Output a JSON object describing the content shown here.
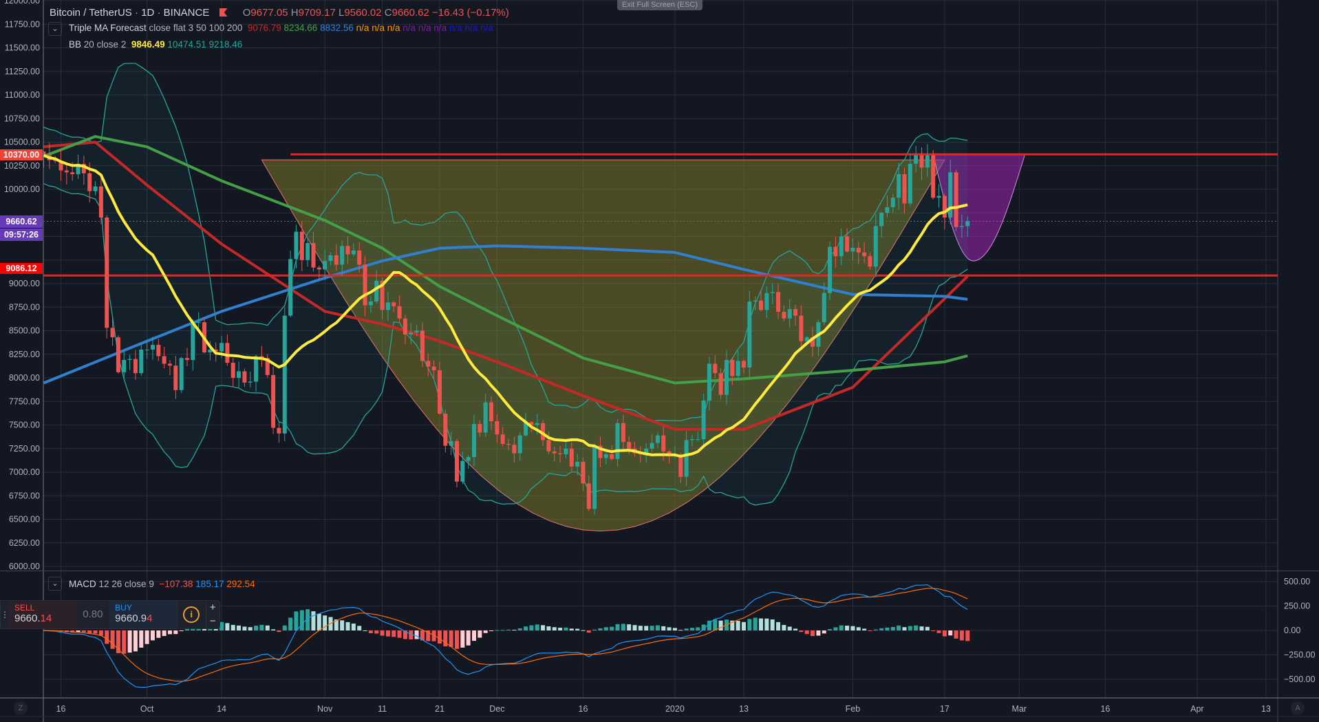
{
  "header": {
    "symbol": "Bitcoin / TetherUS",
    "sep": " · ",
    "interval": "1D",
    "exchange": "BINANCE",
    "o_label": "O",
    "o": "9677.05",
    "h_label": "H",
    "h": "9709.17",
    "l_label": "L",
    "l": "9560.02",
    "c_label": "C",
    "c": "9660.62",
    "change": "−16.43 (−0.17%)"
  },
  "indicators": {
    "triple_ma": {
      "name": "Triple MA Forecast",
      "params": "close flat 3 50 100 200",
      "v1": "9076.79",
      "v2": "8234.66",
      "v3": "8832.56",
      "na": [
        "n/a",
        "n/a",
        "n/a",
        "n/a",
        "n/a",
        "n/a",
        "n/a",
        "n/a",
        "n/a"
      ]
    },
    "bb": {
      "name": "BB",
      "params": "20 close 2",
      "basis": "9846.49",
      "upper": "10474.51",
      "lower": "9218.46"
    },
    "macd": {
      "name": "MACD",
      "params": "12 26 close 9",
      "hist": "−107.38",
      "macd": "185.17",
      "signal": "292.54"
    }
  },
  "exit_fullscreen": "Exit Full Screen (ESC)",
  "price_labels": {
    "resistance": "10370.00",
    "last": "9660.62",
    "countdown": "09:57:26",
    "support": "9086.12"
  },
  "trade": {
    "sell_label": "SELL",
    "sell_main": "9660.",
    "sell_tail": "14",
    "spread": "0.80",
    "buy_label": "BUY",
    "buy_main": "9660.9",
    "buy_tail": "4",
    "info": "i",
    "plus": "+",
    "minus": "−"
  },
  "axis_buttons": {
    "left": "Z",
    "right": "A"
  },
  "colors": {
    "bg": "#131722",
    "up": "#26a69a",
    "down": "#ef5350",
    "yellow": "#ffeb3b",
    "ma50": "#c62828",
    "ma100": "#2f80d0",
    "ma200": "#43a047",
    "bb": "#26a69a",
    "level": "#ff1a1a",
    "cup": "#8f8a2a",
    "handle": "#9c27b0",
    "macd": "#2196f3",
    "signal": "#ff6d00"
  },
  "chart_data": {
    "type": "candlestick",
    "start_date": "2019-09-13",
    "price_axis": {
      "min": 6000,
      "max": 12000,
      "step": 250
    },
    "macd_axis": {
      "ticks": [
        500,
        250,
        0,
        -250,
        -500
      ]
    },
    "time_ticks": [
      {
        "day": 3,
        "label": "16"
      },
      {
        "day": 18,
        "label": "Oct"
      },
      {
        "day": 31,
        "label": "14"
      },
      {
        "day": 49,
        "label": "Nov"
      },
      {
        "day": 59,
        "label": "11"
      },
      {
        "day": 69,
        "label": "21"
      },
      {
        "day": 79,
        "label": "Dec"
      },
      {
        "day": 94,
        "label": "16"
      },
      {
        "day": 110,
        "label": "2020"
      },
      {
        "day": 122,
        "label": "13"
      },
      {
        "day": 141,
        "label": "Feb"
      },
      {
        "day": 157,
        "label": "17"
      },
      {
        "day": 170,
        "label": "Mar"
      },
      {
        "day": 185,
        "label": "16"
      },
      {
        "day": 201,
        "label": "Apr"
      },
      {
        "day": 213,
        "label": "13"
      }
    ],
    "closes": [
      10360,
      10310,
      10300,
      10200,
      10180,
      10160,
      10270,
      10170,
      9980,
      10030,
      9700,
      8530,
      8430,
      8060,
      8190,
      8200,
      8050,
      8300,
      8300,
      8350,
      8230,
      8150,
      8130,
      7870,
      8210,
      8190,
      8590,
      8590,
      8270,
      8300,
      8280,
      8370,
      8160,
      8000,
      8070,
      7950,
      7960,
      8230,
      8210,
      8030,
      7470,
      7410,
      8660,
      9260,
      9550,
      9250,
      9430,
      9170,
      9150,
      9240,
      9300,
      9200,
      9400,
      9310,
      9350,
      9200,
      8770,
      8810,
      9030,
      8720,
      8800,
      8760,
      8630,
      8460,
      8480,
      8500,
      8180,
      8120,
      8080,
      7620,
      7280,
      7330,
      6900,
      7120,
      7160,
      7510,
      7420,
      7740,
      7540,
      7400,
      7300,
      7290,
      7200,
      7390,
      7530,
      7500,
      7520,
      7340,
      7220,
      7200,
      7190,
      7250,
      7060,
      7110,
      6880,
      6610,
      7280,
      7150,
      7190,
      7140,
      7520,
      7320,
      7250,
      7200,
      7190,
      7250,
      7310,
      7390,
      7220,
      7170,
      7180,
      6950,
      7340,
      7350,
      7350,
      7760,
      8150,
      8050,
      7820,
      8190,
      8020,
      8180,
      8110,
      8810,
      8820,
      8720,
      8900,
      8910,
      8700,
      8630,
      8730,
      8660,
      8390,
      8430,
      8330,
      8590,
      8900,
      9390,
      9290,
      9500,
      9340,
      9380,
      9330,
      9290,
      9180,
      9610,
      9750,
      9810,
      9910,
      10160,
      9850,
      10270,
      10360,
      10230,
      10360,
      9910,
      9930,
      9700,
      10180,
      9600,
      9610,
      9660.62
    ],
    "ma_series": [
      {
        "name": "MA50",
        "color": "#c62828",
        "points": [
          [
            0,
            10450
          ],
          [
            9,
            10500
          ],
          [
            18,
            10045
          ],
          [
            31,
            9420
          ],
          [
            49,
            8705
          ],
          [
            59,
            8570
          ],
          [
            69,
            8390
          ],
          [
            79,
            8170
          ],
          [
            94,
            7810
          ],
          [
            110,
            7455
          ],
          [
            122,
            7455
          ],
          [
            141,
            7900
          ],
          [
            157,
            8840
          ],
          [
            161,
            9076.79
          ]
        ]
      },
      {
        "name": "MA200",
        "color": "#43a047",
        "points": [
          [
            0,
            10350
          ],
          [
            9,
            10560
          ],
          [
            18,
            10450
          ],
          [
            31,
            10090
          ],
          [
            49,
            9670
          ],
          [
            59,
            9375
          ],
          [
            69,
            8970
          ],
          [
            79,
            8660
          ],
          [
            94,
            8210
          ],
          [
            110,
            7945
          ],
          [
            122,
            7990
          ],
          [
            141,
            8080
          ],
          [
            157,
            8170
          ],
          [
            161,
            8234.66
          ]
        ]
      },
      {
        "name": "MA100",
        "color": "#2f80d0",
        "points": [
          [
            0,
            7945
          ],
          [
            18,
            8390
          ],
          [
            31,
            8705
          ],
          [
            49,
            9060
          ],
          [
            59,
            9240
          ],
          [
            69,
            9375
          ],
          [
            79,
            9400
          ],
          [
            94,
            9375
          ],
          [
            110,
            9330
          ],
          [
            122,
            9150
          ],
          [
            141,
            8885
          ],
          [
            157,
            8865
          ],
          [
            161,
            8832.56
          ]
        ]
      }
    ],
    "levels": [
      {
        "price": 10370,
        "from_day": 43
      },
      {
        "price": 9086.12,
        "from_day": -3
      }
    ],
    "cup": {
      "left_day": 38,
      "right_day": 157,
      "rim": 10312,
      "bottom_day": 97,
      "bottom": 6375
    },
    "handle": {
      "left_day": 155,
      "right_day": 171,
      "rim": 10370,
      "bottom_day": 162,
      "bottom": 9240
    }
  }
}
